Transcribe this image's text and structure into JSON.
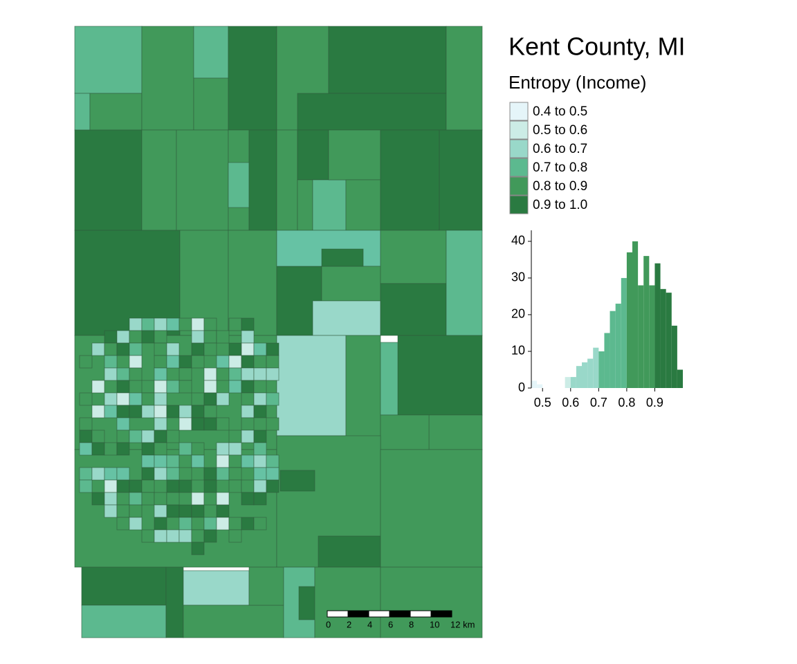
{
  "title": "Kent County, MI",
  "legend": {
    "title": "Entropy (Income)",
    "items": [
      {
        "label": "0.4 to 0.5",
        "color": "#e5f5f9"
      },
      {
        "label": "0.5 to 0.6",
        "color": "#ccece6"
      },
      {
        "label": "0.6 to 0.7",
        "color": "#99d8c9"
      },
      {
        "label": "0.7 to 0.8",
        "color": "#5cb98f"
      },
      {
        "label": "0.8 to 0.9",
        "color": "#41995a"
      },
      {
        "label": "0.9 to 1.0",
        "color": "#2a7a41"
      }
    ]
  },
  "chart_data": {
    "type": "histogram",
    "bins": [
      0.46,
      0.48,
      0.5,
      0.52,
      0.54,
      0.56,
      0.58,
      0.6,
      0.62,
      0.64,
      0.66,
      0.68,
      0.7,
      0.72,
      0.74,
      0.76,
      0.78,
      0.8,
      0.82,
      0.84,
      0.86,
      0.88,
      0.9,
      0.92,
      0.94,
      0.96,
      0.98,
      1.0
    ],
    "values": [
      2,
      1,
      0,
      0,
      0,
      0,
      3,
      3,
      6,
      7,
      8,
      11,
      10,
      15,
      21,
      23,
      30,
      37,
      40,
      28,
      36,
      28,
      34,
      27,
      26,
      17,
      5
    ],
    "colors": [
      "#e5f5f9",
      "#e5f5f9",
      "#ccece6",
      "#ccece6",
      "#ccece6",
      "#ccece6",
      "#ccece6",
      "#99d8c9",
      "#99d8c9",
      "#99d8c9",
      "#99d8c9",
      "#99d8c9",
      "#5cb98f",
      "#5cb98f",
      "#5cb98f",
      "#5cb98f",
      "#5cb98f",
      "#41995a",
      "#41995a",
      "#41995a",
      "#41995a",
      "#41995a",
      "#2a7a41",
      "#2a7a41",
      "#2a7a41",
      "#2a7a41",
      "#2a7a41"
    ],
    "xlim": [
      0.46,
      1.0
    ],
    "ylim": [
      0,
      43
    ],
    "xticks": [
      0.5,
      0.6,
      0.7,
      0.8,
      0.9
    ],
    "yticks": [
      0,
      10,
      20,
      30,
      40
    ]
  },
  "scale_bar": {
    "labels": [
      "0",
      "2",
      "4",
      "6",
      "8",
      "10",
      "12 km"
    ]
  }
}
